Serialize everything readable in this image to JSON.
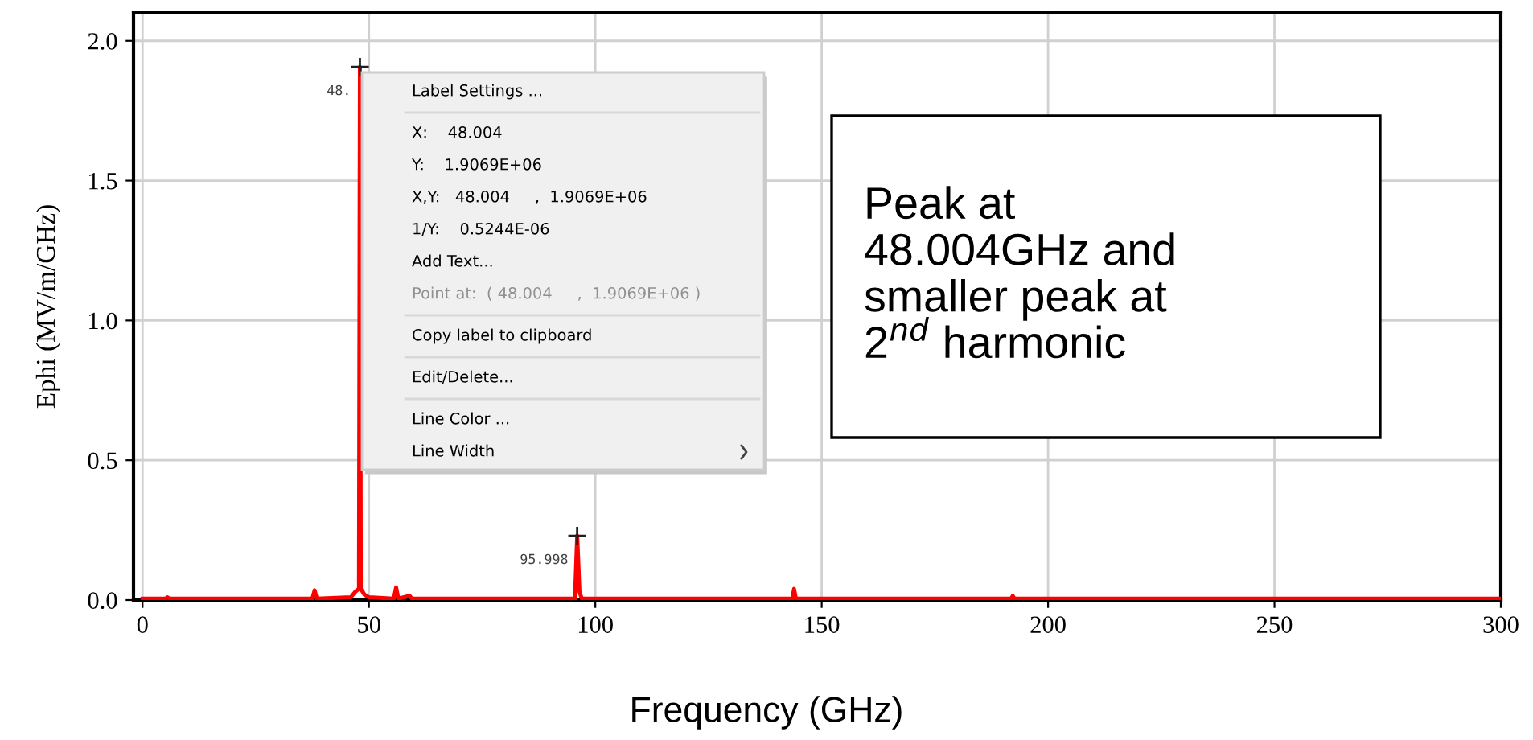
{
  "chart_data": {
    "type": "line",
    "xlabel": "Frequency (GHz)",
    "ylabel": "Ephi (MV/m/GHz)",
    "xlim": [
      -2,
      300
    ],
    "ylim": [
      0,
      2.1
    ],
    "xticks": [
      0,
      50,
      100,
      150,
      200,
      250,
      300
    ],
    "yticks": [
      {
        "value": 0,
        "label": "0.0"
      },
      {
        "value": 0.5,
        "label": "0.5"
      },
      {
        "value": 1,
        "label": "1.0"
      },
      {
        "value": 1.5,
        "label": "1.5"
      },
      {
        "value": 2,
        "label": "2.0"
      }
    ],
    "grid": true,
    "marker": "none",
    "line_style": "solid",
    "series": [
      {
        "color": "#ff0000",
        "x": [
          0,
          5,
          5.5,
          6,
          37.5,
          38,
          38.5,
          46,
          47,
          47.8,
          48.004,
          48.2,
          49,
          50,
          55.5,
          56,
          56.5,
          59,
          59.5,
          95.5,
          95.998,
          96.5,
          97,
          143.5,
          143.9,
          144.3,
          191.8,
          192.2,
          192.6,
          300
        ],
        "values": [
          0.005,
          0.005,
          0.01,
          0.005,
          0.005,
          0.035,
          0.005,
          0.01,
          0.03,
          0.04,
          1.9069,
          0.04,
          0.02,
          0.01,
          0.005,
          0.045,
          0.005,
          0.015,
          0.005,
          0.005,
          0.23,
          0.03,
          0.005,
          0.005,
          0.04,
          0.005,
          0.005,
          0.015,
          0.005,
          0.005
        ]
      }
    ],
    "annotations": [
      {
        "text": "48.",
        "x": 48.004,
        "y": 1.9069
      },
      {
        "text": "95.998",
        "x": 95.998,
        "y": 0.23
      },
      "Label Settings ...",
      "X:    48.004",
      "Y:    1.9069E+06",
      "X,Y:   48.004     ,  1.9069E+06",
      "1/Y:    0.5244E-06",
      "Add Text...",
      "Point at:  ( 48.004     ,  1.9069E+06 )",
      "Copy label to clipboard",
      "Edit/Delete...",
      "Line Color ...",
      "Line Width",
      "Peak at\n48.004GHz and\nsmaller peak at\n2$^{nd}$ harmonic"
    ]
  }
}
